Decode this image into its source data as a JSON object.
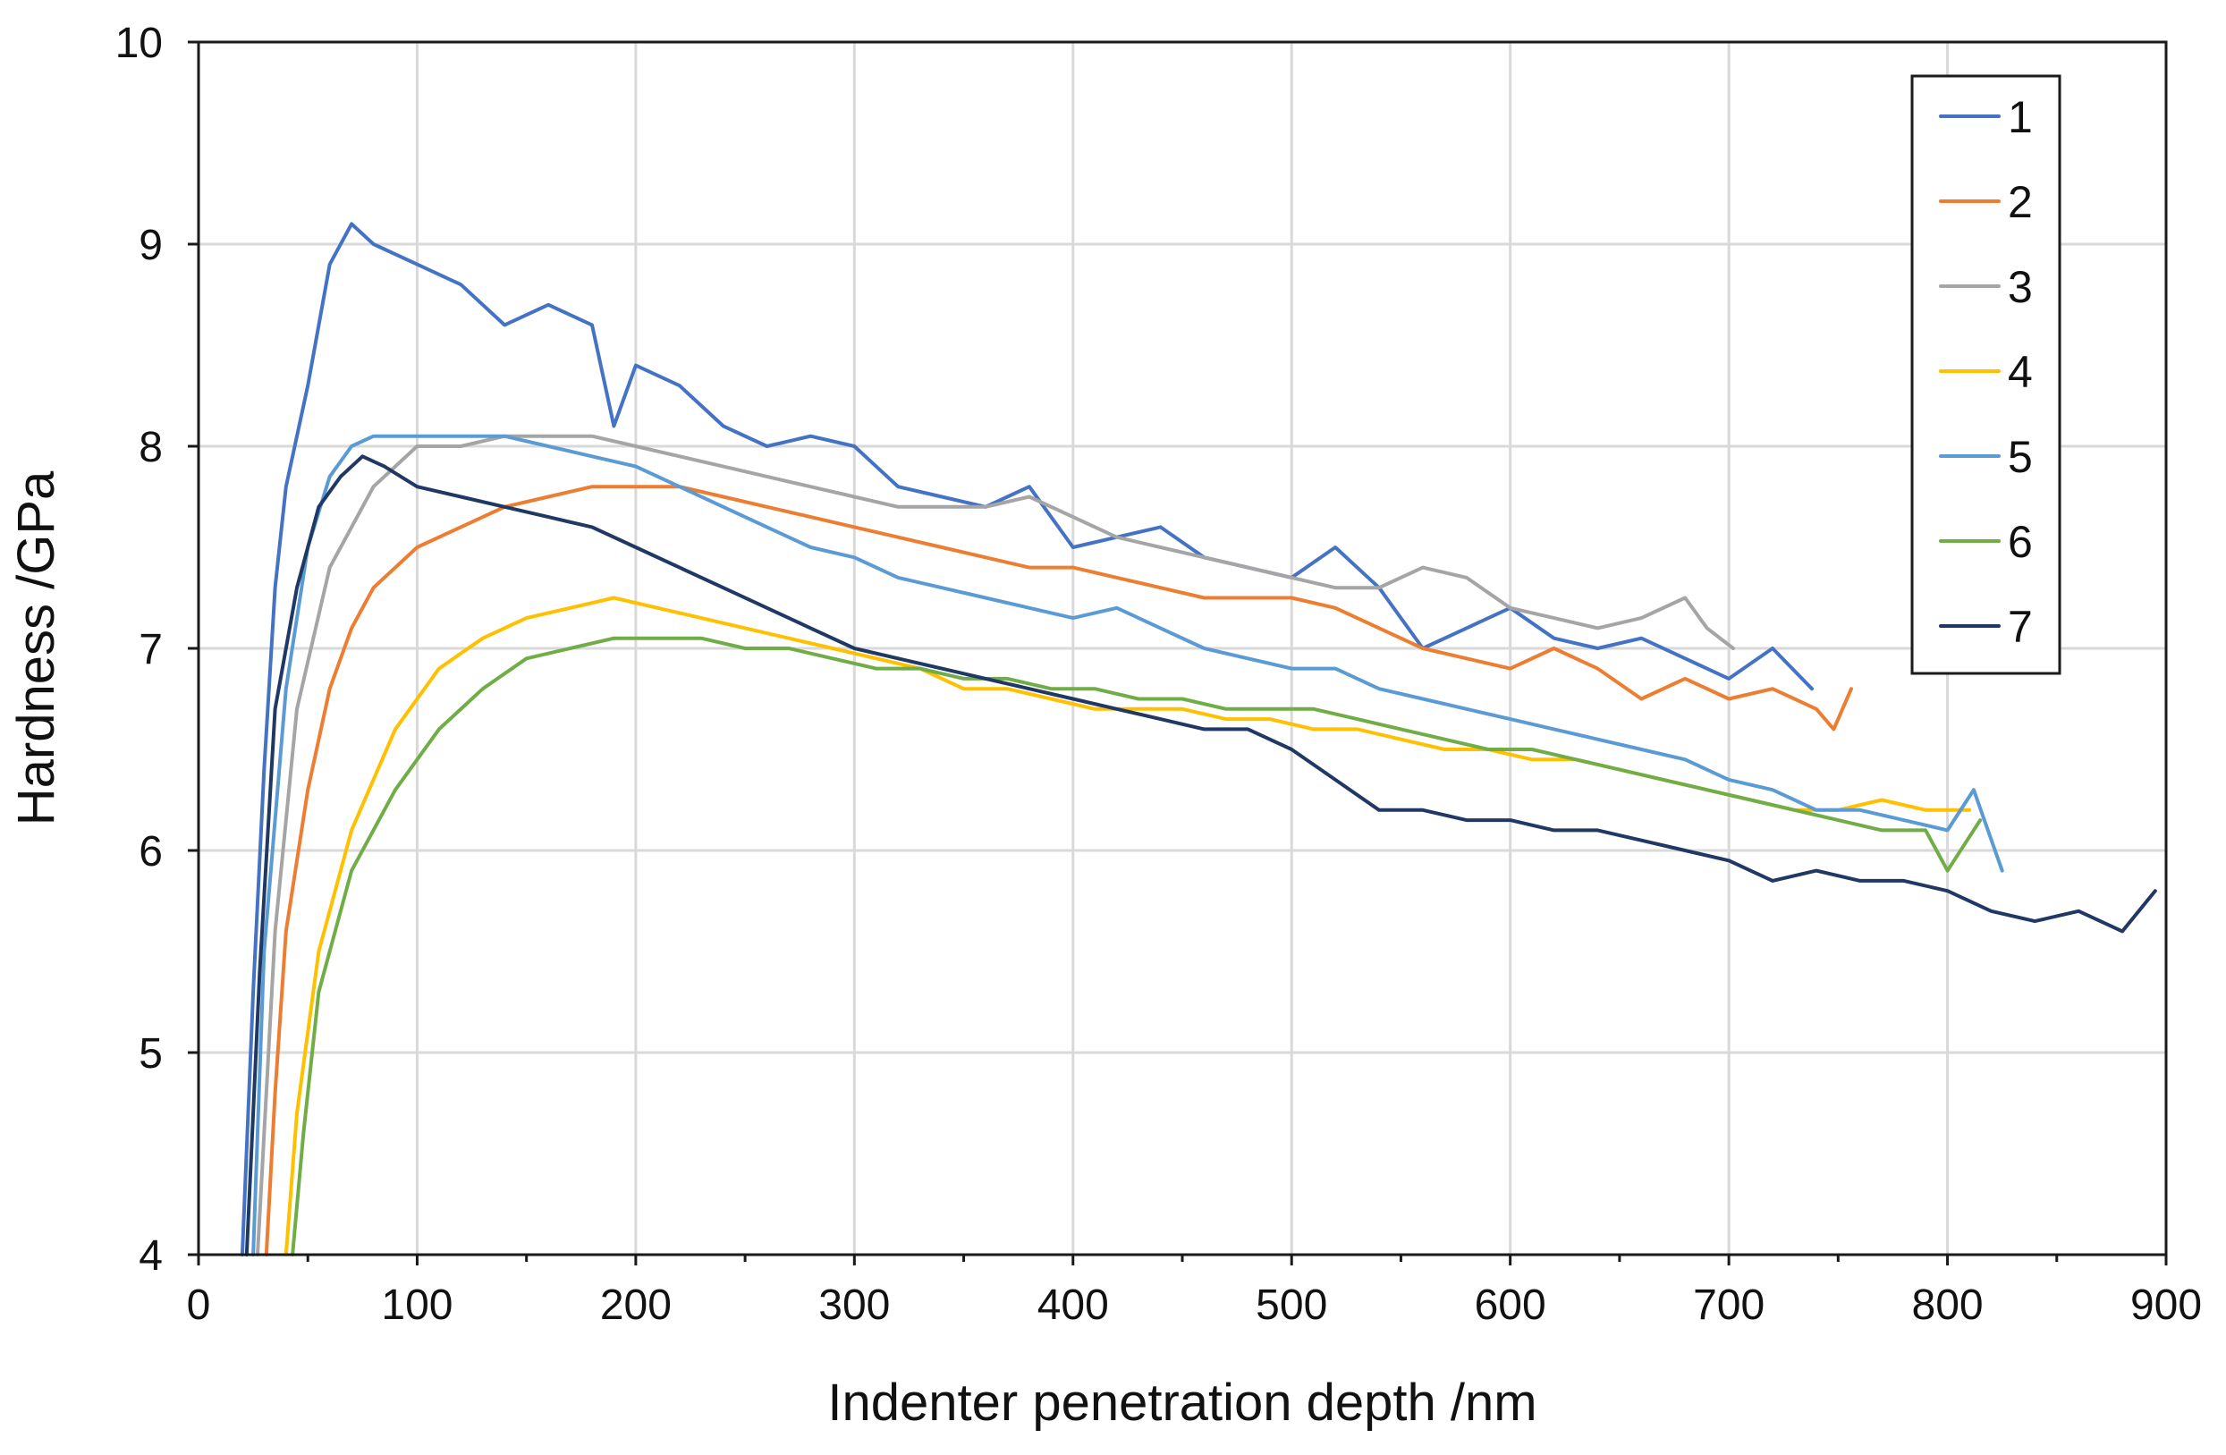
{
  "chart_data": {
    "type": "line",
    "title": "",
    "xlabel": "Indenter penetration depth /nm",
    "ylabel": "Hardness /GPa",
    "xlim": [
      0,
      900
    ],
    "ylim": [
      4,
      10
    ],
    "xticks": [
      0,
      100,
      200,
      300,
      400,
      500,
      600,
      700,
      800,
      900
    ],
    "yticks": [
      4,
      5,
      6,
      7,
      8,
      9,
      10
    ],
    "grid": true,
    "legend_position": "top-right",
    "series": [
      {
        "name": "1",
        "color": "#4472c4",
        "x": [
          20,
          25,
          30,
          35,
          40,
          50,
          60,
          70,
          80,
          100,
          120,
          140,
          160,
          180,
          190,
          200,
          220,
          240,
          260,
          280,
          300,
          320,
          340,
          360,
          380,
          400,
          420,
          440,
          460,
          480,
          500,
          520,
          540,
          560,
          580,
          600,
          620,
          640,
          660,
          680,
          700,
          720,
          738
        ],
        "y": [
          4.0,
          5.3,
          6.4,
          7.3,
          7.8,
          8.3,
          8.9,
          9.1,
          9.0,
          8.9,
          8.8,
          8.6,
          8.7,
          8.6,
          8.1,
          8.4,
          8.3,
          8.1,
          8.0,
          8.05,
          8.0,
          7.8,
          7.75,
          7.7,
          7.8,
          7.5,
          7.55,
          7.6,
          7.45,
          7.4,
          7.35,
          7.5,
          7.3,
          7.0,
          7.1,
          7.2,
          7.05,
          7.0,
          7.05,
          6.95,
          6.85,
          7.0,
          6.8
        ]
      },
      {
        "name": "2",
        "color": "#ed7d31",
        "x": [
          31,
          35,
          40,
          50,
          60,
          70,
          80,
          100,
          120,
          140,
          160,
          180,
          200,
          220,
          240,
          260,
          280,
          300,
          320,
          340,
          360,
          380,
          400,
          420,
          440,
          460,
          480,
          500,
          520,
          540,
          560,
          580,
          600,
          620,
          640,
          660,
          680,
          700,
          720,
          740,
          748,
          756
        ],
        "y": [
          4.0,
          4.8,
          5.6,
          6.3,
          6.8,
          7.1,
          7.3,
          7.5,
          7.6,
          7.7,
          7.75,
          7.8,
          7.8,
          7.8,
          7.75,
          7.7,
          7.65,
          7.6,
          7.55,
          7.5,
          7.45,
          7.4,
          7.4,
          7.35,
          7.3,
          7.25,
          7.25,
          7.25,
          7.2,
          7.1,
          7.0,
          6.95,
          6.9,
          7.0,
          6.9,
          6.75,
          6.85,
          6.75,
          6.8,
          6.7,
          6.6,
          6.8
        ]
      },
      {
        "name": "3",
        "color": "#a5a5a5",
        "x": [
          27,
          35,
          45,
          60,
          80,
          100,
          120,
          140,
          160,
          180,
          200,
          220,
          240,
          260,
          280,
          300,
          320,
          340,
          360,
          380,
          400,
          420,
          440,
          460,
          480,
          500,
          520,
          540,
          560,
          580,
          600,
          620,
          640,
          660,
          680,
          690,
          702
        ],
        "y": [
          4.0,
          5.6,
          6.7,
          7.4,
          7.8,
          8.0,
          8.0,
          8.05,
          8.05,
          8.05,
          8.0,
          7.95,
          7.9,
          7.85,
          7.8,
          7.75,
          7.7,
          7.7,
          7.7,
          7.75,
          7.65,
          7.55,
          7.5,
          7.45,
          7.4,
          7.35,
          7.3,
          7.3,
          7.4,
          7.35,
          7.2,
          7.15,
          7.1,
          7.15,
          7.25,
          7.1,
          7.0
        ]
      },
      {
        "name": "4",
        "color": "#ffc000",
        "x": [
          40,
          45,
          55,
          70,
          90,
          110,
          130,
          150,
          170,
          190,
          210,
          230,
          250,
          270,
          290,
          310,
          330,
          350,
          370,
          390,
          410,
          430,
          450,
          470,
          490,
          510,
          530,
          550,
          570,
          590,
          610,
          630,
          650,
          670,
          690,
          710,
          730,
          750,
          770,
          790,
          810
        ],
        "y": [
          4.0,
          4.7,
          5.5,
          6.1,
          6.6,
          6.9,
          7.05,
          7.15,
          7.2,
          7.25,
          7.2,
          7.15,
          7.1,
          7.05,
          7.0,
          6.95,
          6.9,
          6.8,
          6.8,
          6.75,
          6.7,
          6.7,
          6.7,
          6.65,
          6.65,
          6.6,
          6.6,
          6.55,
          6.5,
          6.5,
          6.45,
          6.45,
          6.4,
          6.35,
          6.3,
          6.25,
          6.2,
          6.2,
          6.25,
          6.2,
          6.2
        ]
      },
      {
        "name": "5",
        "color": "#5b9bd5",
        "x": [
          25,
          30,
          40,
          50,
          60,
          70,
          80,
          100,
          120,
          140,
          160,
          180,
          200,
          220,
          240,
          260,
          280,
          300,
          320,
          340,
          360,
          380,
          400,
          420,
          440,
          460,
          480,
          500,
          520,
          540,
          560,
          580,
          600,
          620,
          640,
          660,
          680,
          700,
          720,
          740,
          760,
          780,
          800,
          812,
          825
        ],
        "y": [
          4.0,
          5.5,
          6.8,
          7.5,
          7.85,
          8.0,
          8.05,
          8.05,
          8.05,
          8.05,
          8.0,
          7.95,
          7.9,
          7.8,
          7.7,
          7.6,
          7.5,
          7.45,
          7.35,
          7.3,
          7.25,
          7.2,
          7.15,
          7.2,
          7.1,
          7.0,
          6.95,
          6.9,
          6.9,
          6.8,
          6.75,
          6.7,
          6.65,
          6.6,
          6.55,
          6.5,
          6.45,
          6.35,
          6.3,
          6.2,
          6.2,
          6.15,
          6.1,
          6.3,
          5.9
        ]
      },
      {
        "name": "6",
        "color": "#70ad47",
        "x": [
          43,
          48,
          55,
          70,
          90,
          110,
          130,
          150,
          170,
          190,
          210,
          230,
          250,
          270,
          290,
          310,
          330,
          350,
          370,
          390,
          410,
          430,
          450,
          470,
          490,
          510,
          530,
          550,
          570,
          590,
          610,
          630,
          650,
          670,
          690,
          710,
          730,
          750,
          770,
          790,
          800,
          815
        ],
        "y": [
          4.0,
          4.6,
          5.3,
          5.9,
          6.3,
          6.6,
          6.8,
          6.95,
          7.0,
          7.05,
          7.05,
          7.05,
          7.0,
          7.0,
          6.95,
          6.9,
          6.9,
          6.85,
          6.85,
          6.8,
          6.8,
          6.75,
          6.75,
          6.7,
          6.7,
          6.7,
          6.65,
          6.6,
          6.55,
          6.5,
          6.5,
          6.45,
          6.4,
          6.35,
          6.3,
          6.25,
          6.2,
          6.15,
          6.1,
          6.1,
          5.9,
          6.15
        ]
      },
      {
        "name": "7",
        "color": "#203864",
        "x": [
          22,
          28,
          35,
          45,
          55,
          65,
          75,
          85,
          100,
          120,
          140,
          160,
          180,
          200,
          220,
          240,
          260,
          280,
          300,
          320,
          340,
          360,
          380,
          400,
          420,
          440,
          460,
          480,
          500,
          520,
          540,
          560,
          580,
          600,
          620,
          640,
          660,
          680,
          700,
          720,
          740,
          760,
          780,
          800,
          820,
          840,
          860,
          880,
          895
        ],
        "y": [
          4.0,
          5.4,
          6.7,
          7.3,
          7.7,
          7.85,
          7.95,
          7.9,
          7.8,
          7.75,
          7.7,
          7.65,
          7.6,
          7.5,
          7.4,
          7.3,
          7.2,
          7.1,
          7.0,
          6.95,
          6.9,
          6.85,
          6.8,
          6.75,
          6.7,
          6.65,
          6.6,
          6.6,
          6.5,
          6.35,
          6.2,
          6.2,
          6.15,
          6.15,
          6.1,
          6.1,
          6.05,
          6.0,
          5.95,
          5.85,
          5.9,
          5.85,
          5.85,
          5.8,
          5.7,
          5.65,
          5.7,
          5.6,
          5.8
        ]
      }
    ]
  }
}
